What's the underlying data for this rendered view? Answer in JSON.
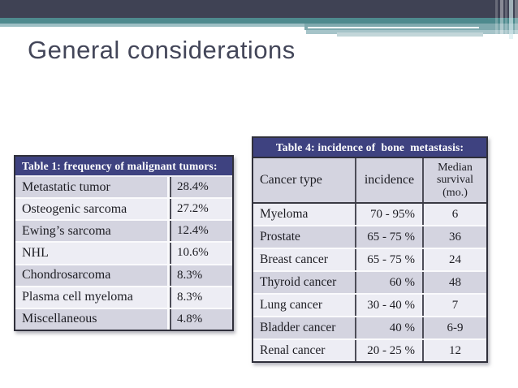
{
  "slide": {
    "title": "General considerations"
  },
  "theme": {
    "banner_dark": "#3F4254",
    "banner_teal": "#4E8A8E",
    "banner_light_teal": "#9DBFC4",
    "table_title_bg": "#3E4280",
    "row_band_dark": "#D4D4E0",
    "row_band_light": "#EDEDF4",
    "slide_title_color": "#434659"
  },
  "table1": {
    "title": "Table 1: frequency of malignant tumors:",
    "rows": [
      {
        "label": "Metastatic tumor",
        "value": "28.4%"
      },
      {
        "label": "Osteogenic sarcoma",
        "value": "27.2%"
      },
      {
        "label": "Ewing’s sarcoma",
        "value": "12.4%"
      },
      {
        "label": "NHL",
        "value": "10.6%"
      },
      {
        "label": "Chondrosarcoma",
        "value": "8.3%"
      },
      {
        "label": "Plasma cell myeloma",
        "value": "8.3%"
      },
      {
        "label": "Miscellaneous",
        "value": "4.8%"
      }
    ]
  },
  "table4": {
    "title": "Table 4: incidence of  bone  metastasis:",
    "columns": {
      "type": "Cancer type",
      "incidence": "incidence",
      "survival": "Median survival (mo.)"
    },
    "rows": [
      {
        "type": "Myeloma",
        "incidence": "70 - 95%",
        "survival": "6"
      },
      {
        "type": "Prostate",
        "incidence": "65 - 75 %",
        "survival": "36"
      },
      {
        "type": "Breast cancer",
        "incidence": "65 - 75 %",
        "survival": "24"
      },
      {
        "type": "Thyroid cancer",
        "incidence": "60 %",
        "survival": "48"
      },
      {
        "type": "Lung cancer",
        "incidence": "30 - 40 %",
        "survival": "7"
      },
      {
        "type": "Bladder cancer",
        "incidence": "40 %",
        "survival": "6-9"
      },
      {
        "type": "Renal cancer",
        "incidence": "20 - 25 %",
        "survival": "12"
      }
    ]
  }
}
